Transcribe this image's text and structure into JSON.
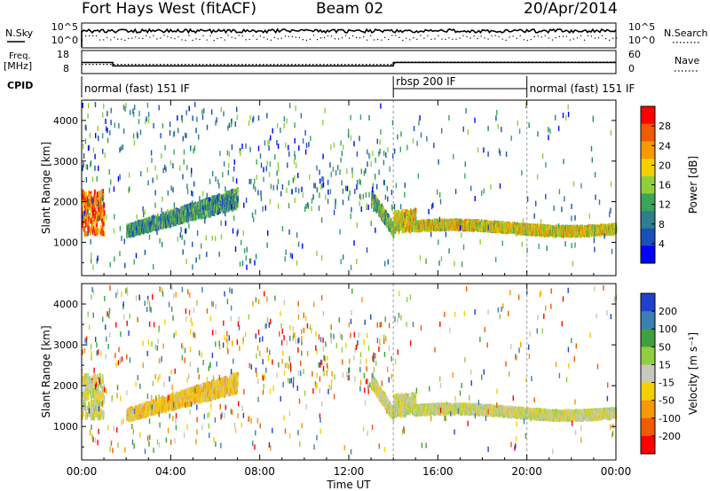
{
  "header": {
    "title": "Fort Hays West (fitACF)",
    "beam": "Beam 02",
    "date": "20/Apr/2014"
  },
  "noise_panel": {
    "left_label": "N.Sky",
    "right_label": "N.Search",
    "left_ticks": [
      "10^5",
      "10^0"
    ],
    "right_ticks": [
      "10^5",
      "10^0"
    ]
  },
  "freq_panel": {
    "left_label_line1": "Freq.",
    "left_label_line2": "[MHz]",
    "left_ticks": [
      "18",
      "8"
    ],
    "right_label": "Nave",
    "right_ticks": [
      "60",
      "0"
    ]
  },
  "cpid": {
    "label": "CPID",
    "segments": [
      {
        "name": "normal (fast) 151 IF",
        "start": 0,
        "end": 14
      },
      {
        "name": "rbsp 200 IF",
        "start": 14,
        "end": 20
      },
      {
        "name": "normal (fast) 151 IF",
        "start": 20,
        "end": 24
      }
    ]
  },
  "x_axis": {
    "label": "Time UT",
    "ticks": [
      "00:00",
      "04:00",
      "08:00",
      "12:00",
      "16:00",
      "20:00",
      "00:00"
    ]
  },
  "colors": {
    "power": [
      "#0000ff",
      "#1a4fb8",
      "#2e7e8c",
      "#3aa55a",
      "#8fd03a",
      "#f5d000",
      "#f59a00",
      "#f05a00",
      "#ff0000"
    ],
    "velocity": [
      "#2040d0",
      "#3a80b0",
      "#40a040",
      "#90d040",
      "#c8c8c0",
      "#f5d000",
      "#f59a00",
      "#f05a00",
      "#ff0000"
    ]
  },
  "chart_data": [
    {
      "type": "heatmap",
      "name": "power",
      "ylabel": "Slant Range [km]",
      "xlabel": "Time UT",
      "xlim": [
        0,
        24
      ],
      "ylim": [
        180,
        4500
      ],
      "yticks": [
        1000,
        2000,
        3000,
        4000
      ],
      "colorbar": {
        "label": "Power [dB]",
        "ticks": [
          "28",
          "24",
          "20",
          "16",
          "12",
          "8",
          "4"
        ],
        "range": [
          0,
          30
        ]
      },
      "echo_bands": [
        {
          "t_start": 0.0,
          "t_end": 1.0,
          "range_low": 1200,
          "range_high": 2250,
          "power": 24
        },
        {
          "t_start": 2.0,
          "t_end": 7.0,
          "range_low": 1150,
          "range_high": 2500,
          "power": 10
        },
        {
          "t_start": 13.0,
          "t_end": 14.0,
          "range_low": 1150,
          "range_high": 1600,
          "power": 12
        },
        {
          "t_start": 14.0,
          "t_end": 24.0,
          "range_low": 1300,
          "range_high": 1800,
          "power": 18
        }
      ]
    },
    {
      "type": "heatmap",
      "name": "velocity",
      "ylabel": "Slant Range [km]",
      "xlabel": "Time UT",
      "xlim": [
        0,
        24
      ],
      "ylim": [
        180,
        4500
      ],
      "yticks": [
        1000,
        2000,
        3000,
        4000
      ],
      "colorbar": {
        "label": "Velocity [m s⁻¹]",
        "ticks": [
          "200",
          "100",
          "50",
          "15",
          "-15",
          "-50",
          "-100",
          "-200"
        ],
        "range": [
          -250,
          250
        ]
      },
      "echo_bands": [
        {
          "t_start": 0.0,
          "t_end": 1.0,
          "range_low": 1200,
          "range_high": 2250,
          "velocity": 0
        },
        {
          "t_start": 2.0,
          "t_end": 7.0,
          "range_low": 1150,
          "range_high": 2600,
          "velocity": -60
        },
        {
          "t_start": 13.0,
          "t_end": 14.0,
          "range_low": 1150,
          "range_high": 1600,
          "velocity": 0
        },
        {
          "t_start": 14.0,
          "t_end": 24.0,
          "range_low": 1300,
          "range_high": 1800,
          "velocity": 0
        }
      ]
    }
  ]
}
